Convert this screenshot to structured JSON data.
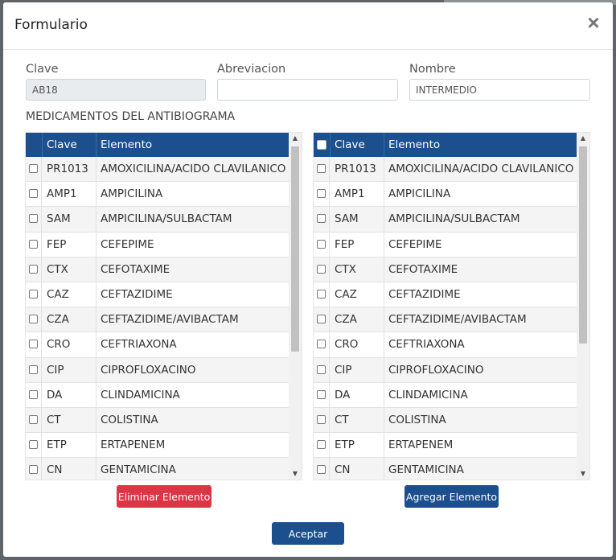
{
  "modal": {
    "title": "Formulario",
    "close_icon": "×"
  },
  "form": {
    "clave": {
      "label": "Clave",
      "value": "AB18"
    },
    "abreviacion": {
      "label": "Abreviacion",
      "value": ""
    },
    "nombre": {
      "label": "Nombre",
      "value": "INTERMEDIO"
    }
  },
  "section_label": "MEDICAMENTOS DEL ANTIBIOGRAMA",
  "grid_headers": {
    "clave": "Clave",
    "elemento": "Elemento"
  },
  "left_grid": {
    "rows": [
      {
        "clave": "PR1013",
        "elemento": "AMOXICILINA/ACIDO CLAVILANICO"
      },
      {
        "clave": "AMP1",
        "elemento": "AMPICILINA"
      },
      {
        "clave": "SAM",
        "elemento": "AMPICILINA/SULBACTAM"
      },
      {
        "clave": "FEP",
        "elemento": "CEFEPIME"
      },
      {
        "clave": "CTX",
        "elemento": "CEFOTAXIME"
      },
      {
        "clave": "CAZ",
        "elemento": "CEFTAZIDIME"
      },
      {
        "clave": "CZA",
        "elemento": "CEFTAZIDIME/AVIBACTAM"
      },
      {
        "clave": "CRO",
        "elemento": "CEFTRIAXONA"
      },
      {
        "clave": "CIP",
        "elemento": "CIPROFLOXACINO"
      },
      {
        "clave": "DA",
        "elemento": "CLINDAMICINA"
      },
      {
        "clave": "CT",
        "elemento": "COLISTINA"
      },
      {
        "clave": "ETP",
        "elemento": "ERTAPENEM"
      },
      {
        "clave": "CN",
        "elemento": "GENTAMICINA"
      }
    ]
  },
  "right_grid": {
    "rows": [
      {
        "clave": "PR1013",
        "elemento": "AMOXICILINA/ACIDO CLAVILANICO"
      },
      {
        "clave": "AMP1",
        "elemento": "AMPICILINA"
      },
      {
        "clave": "SAM",
        "elemento": "AMPICILINA/SULBACTAM"
      },
      {
        "clave": "FEP",
        "elemento": "CEFEPIME"
      },
      {
        "clave": "CTX",
        "elemento": "CEFOTAXIME"
      },
      {
        "clave": "CAZ",
        "elemento": "CEFTAZIDIME"
      },
      {
        "clave": "CZA",
        "elemento": "CEFTAZIDIME/AVIBACTAM"
      },
      {
        "clave": "CRO",
        "elemento": "CEFTRIAXONA"
      },
      {
        "clave": "CIP",
        "elemento": "CIPROFLOXACINO"
      },
      {
        "clave": "DA",
        "elemento": "CLINDAMICINA"
      },
      {
        "clave": "CT",
        "elemento": "COLISTINA"
      },
      {
        "clave": "ETP",
        "elemento": "ERTAPENEM"
      },
      {
        "clave": "CN",
        "elemento": "GENTAMICINA"
      }
    ]
  },
  "buttons": {
    "eliminar": "Eliminar Elemento",
    "agregar": "Agregar Elemento",
    "aceptar": "Aceptar"
  },
  "colors": {
    "header_bg": "#1b4f8d",
    "danger": "#dc3545",
    "primary": "#1b4f8d"
  },
  "icons": {
    "scroll_up": "▲",
    "scroll_down": "▼"
  }
}
